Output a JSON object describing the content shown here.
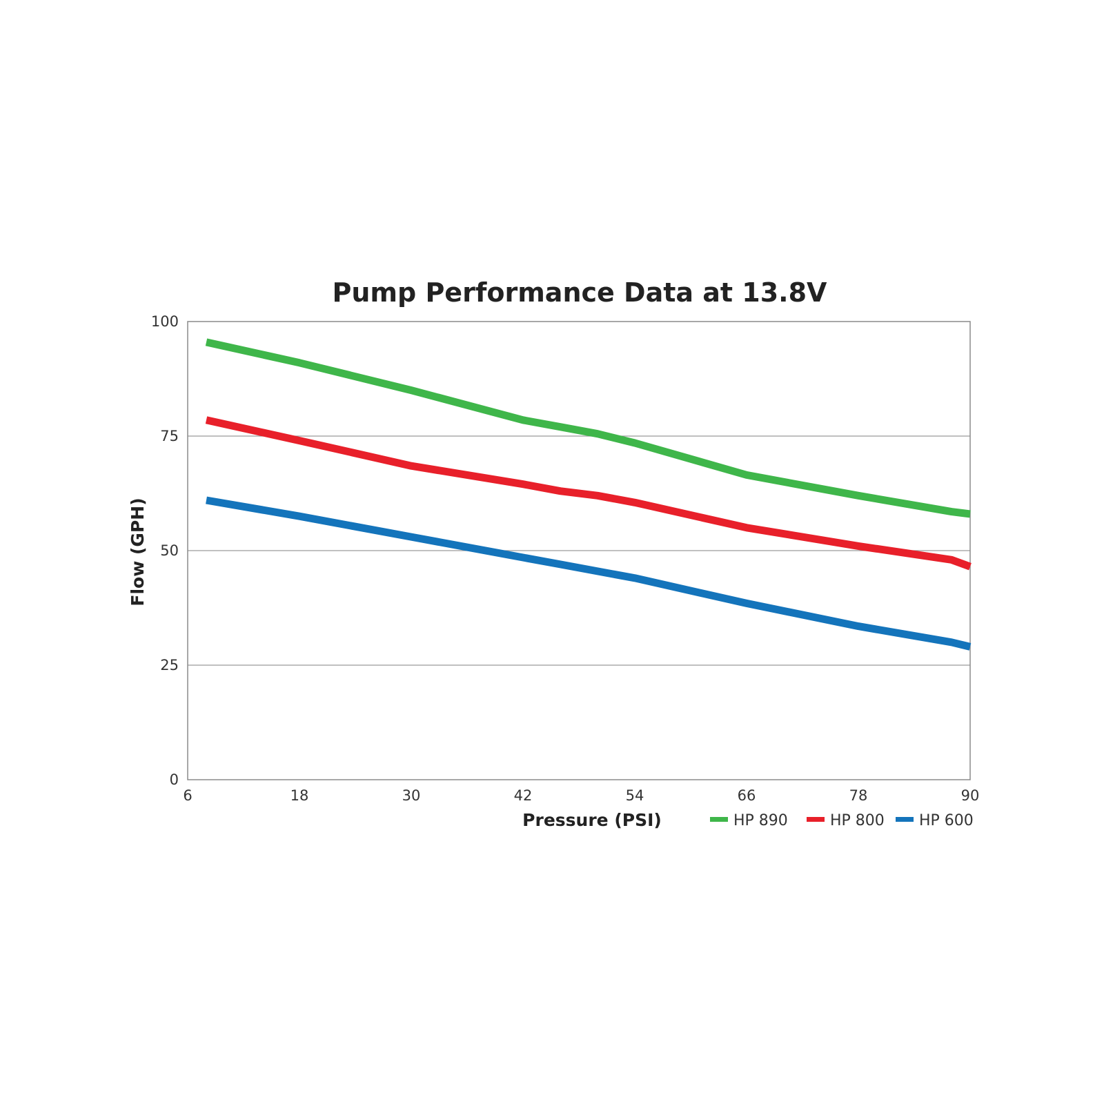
{
  "chart_data": {
    "type": "line",
    "title": "Pump Performance Data at 13.8V",
    "xlabel": "Pressure (PSI)",
    "ylabel": "Flow (GPH)",
    "xlim": [
      6,
      90
    ],
    "ylim": [
      0,
      100
    ],
    "x_ticks": [
      "6",
      "18",
      "30",
      "42",
      "54",
      "66",
      "78",
      "90"
    ],
    "y_ticks": [
      "0",
      "25",
      "50",
      "75",
      "100"
    ],
    "grid": "horizontal",
    "legend_position": "bottom-right",
    "x": [
      8,
      18,
      30,
      42,
      46,
      50,
      54,
      66,
      78,
      88,
      90
    ],
    "series": [
      {
        "name": "HP 890",
        "color": "#3fb64a",
        "values": [
          95.5,
          91,
          85,
          78.5,
          77,
          75.5,
          73.5,
          66.5,
          62,
          58.5,
          58
        ]
      },
      {
        "name": "HP 800",
        "color": "#e8202a",
        "values": [
          78.5,
          74,
          68.5,
          64.5,
          63,
          62,
          60.5,
          55,
          51,
          48,
          46.5
        ]
      },
      {
        "name": "HP 600",
        "color": "#1474bb",
        "values": [
          61,
          57.5,
          53,
          48.5,
          47,
          45.5,
          44,
          38.5,
          33.5,
          30,
          29
        ]
      }
    ]
  }
}
